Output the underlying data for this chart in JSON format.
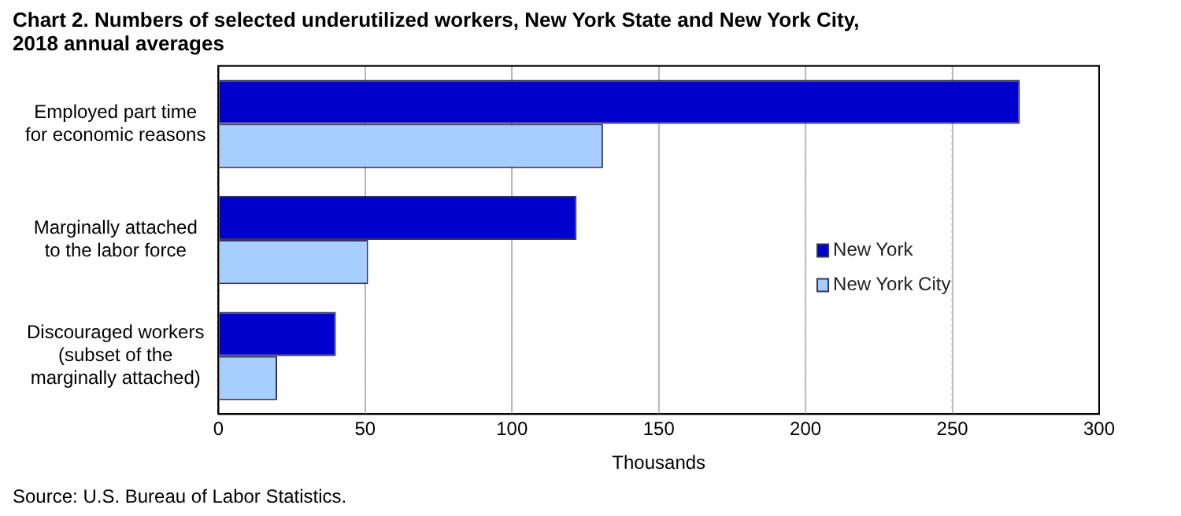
{
  "chart_data": {
    "type": "bar",
    "orientation": "horizontal",
    "title": "Chart 2. Numbers of selected underutilized workers, New York State and New York City, 2018 annual averages",
    "xlabel": "Thousands",
    "categories": [
      "Employed part time for economic reasons",
      "Marginally attached to the labor force",
      "Discouraged workers (subset of the marginally attached)"
    ],
    "series": [
      {
        "name": "New York",
        "color": "#0000cc",
        "values": [
          273,
          122,
          40
        ]
      },
      {
        "name": "New York City",
        "color": "#a6cfff",
        "values": [
          131,
          51,
          20
        ]
      }
    ],
    "xlim": [
      0,
      300
    ],
    "xticks": [
      0,
      50,
      100,
      150,
      200,
      250,
      300
    ],
    "grid": "x",
    "legend": "right",
    "annotations": [
      "Source: U.S. Bureau of Labor Statistics."
    ]
  }
}
